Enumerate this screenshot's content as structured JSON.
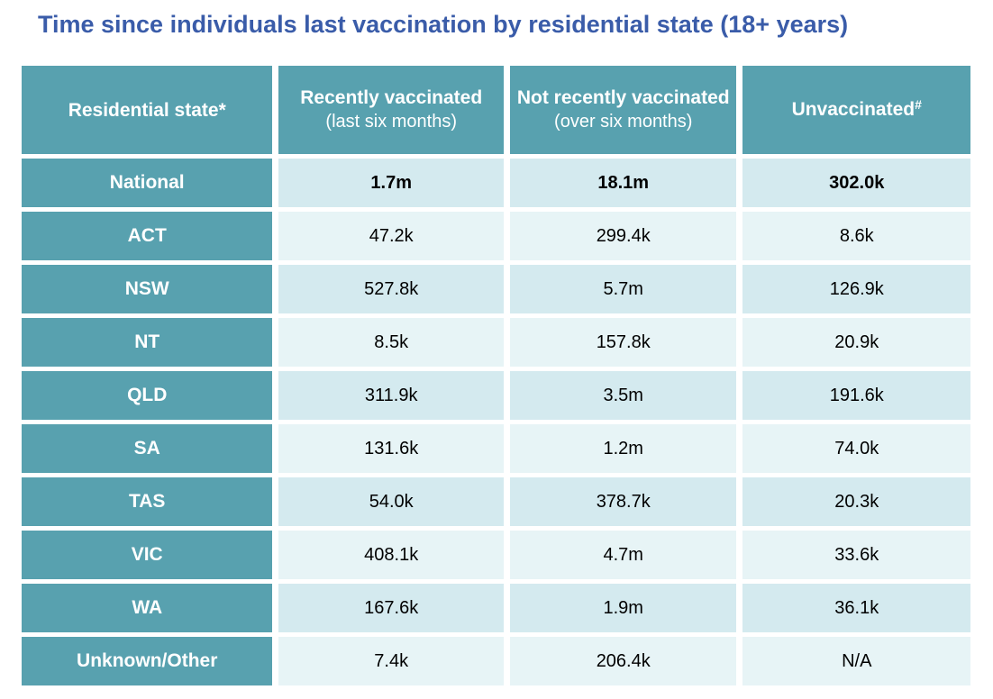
{
  "title": "Time since individuals last vaccination by residential state (18+ years)",
  "colors": {
    "title_blue": "#3A5CA9",
    "header_teal": "#58A1AF",
    "row_dark": "#D4EAEF",
    "row_light": "#E7F4F6",
    "header_text": "#FFFFFF",
    "body_text": "#000000"
  },
  "table": {
    "header": {
      "col0": {
        "label": "Residential state*"
      },
      "col1": {
        "label": "Recently vaccinated",
        "sublabel": "(last six months)"
      },
      "col2": {
        "label": "Not recently vaccinated",
        "sublabel": "(over six months)"
      },
      "col3": {
        "label": "Unvaccinated",
        "sup": "#"
      }
    },
    "rows": [
      {
        "label": "National",
        "cells": [
          "1.7m",
          "18.1m",
          "302.0k"
        ]
      },
      {
        "label": "ACT",
        "cells": [
          "47.2k",
          "299.4k",
          "8.6k"
        ]
      },
      {
        "label": "NSW",
        "cells": [
          "527.8k",
          "5.7m",
          "126.9k"
        ]
      },
      {
        "label": "NT",
        "cells": [
          "8.5k",
          "157.8k",
          "20.9k"
        ]
      },
      {
        "label": "QLD",
        "cells": [
          "311.9k",
          "3.5m",
          "191.6k"
        ]
      },
      {
        "label": "SA",
        "cells": [
          "131.6k",
          "1.2m",
          "74.0k"
        ]
      },
      {
        "label": "TAS",
        "cells": [
          "54.0k",
          "378.7k",
          "20.3k"
        ]
      },
      {
        "label": "VIC",
        "cells": [
          "408.1k",
          "4.7m",
          "33.6k"
        ]
      },
      {
        "label": "WA",
        "cells": [
          "167.6k",
          "1.9m",
          "36.1k"
        ]
      },
      {
        "label": "Unknown/Other",
        "cells": [
          "7.4k",
          "206.4k",
          "N/A"
        ]
      }
    ]
  },
  "chart_data": {
    "type": "table",
    "title": "Time since individuals last vaccination by residential state (18+ years)",
    "columns": [
      "Residential state*",
      "Recently vaccinated (last six months)",
      "Not recently vaccinated (over six months)",
      "Unvaccinated#"
    ],
    "rows": [
      [
        "National",
        "1.7m",
        "18.1m",
        "302.0k"
      ],
      [
        "ACT",
        "47.2k",
        "299.4k",
        "8.6k"
      ],
      [
        "NSW",
        "527.8k",
        "5.7m",
        "126.9k"
      ],
      [
        "NT",
        "8.5k",
        "157.8k",
        "20.9k"
      ],
      [
        "QLD",
        "311.9k",
        "3.5m",
        "191.6k"
      ],
      [
        "SA",
        "131.6k",
        "1.2m",
        "74.0k"
      ],
      [
        "TAS",
        "54.0k",
        "378.7k",
        "20.3k"
      ],
      [
        "VIC",
        "408.1k",
        "4.7m",
        "33.6k"
      ],
      [
        "WA",
        "167.6k",
        "1.9m",
        "36.1k"
      ],
      [
        "Unknown/Other",
        "7.4k",
        "206.4k",
        "N/A"
      ]
    ],
    "notes": "Values in thousands (k) and millions (m); National row emphasized bold"
  }
}
